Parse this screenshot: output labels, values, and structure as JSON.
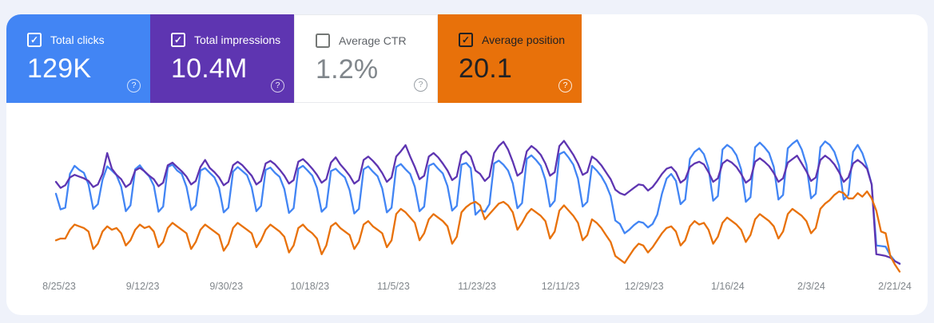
{
  "app": "Search Console Performance",
  "cards": [
    {
      "label": "Total clicks",
      "value": "129K",
      "checked": true,
      "check_glyph": "✓",
      "help_glyph": "?",
      "bg": "#4285f4",
      "text_color": "#ffffff"
    },
    {
      "label": "Total impressions",
      "value": "10.4M",
      "checked": true,
      "check_glyph": "✓",
      "help_glyph": "?",
      "bg": "#5e35b1",
      "text_color": "#ffffff"
    },
    {
      "label": "Average CTR",
      "value": "1.2%",
      "checked": false,
      "check_glyph": "",
      "help_glyph": "?",
      "bg": "#ffffff",
      "text_color": "#5f6368",
      "value_color": "#80868b"
    },
    {
      "label": "Average position",
      "value": "20.1",
      "checked": true,
      "check_glyph": "✓",
      "help_glyph": "?",
      "bg": "#e8710a",
      "text_color": "#202124"
    }
  ],
  "chart_data": {
    "type": "line",
    "grid": false,
    "legend_position": "none",
    "x_start": "8/25/23",
    "x_end": "2/22/24",
    "tick_interval_days": 18,
    "x_labels": [
      "8/25/23",
      "9/12/23",
      "9/30/23",
      "10/18/23",
      "11/5/23",
      "11/23/23",
      "12/11/23",
      "12/29/23",
      "1/16/24",
      "2/3/24",
      "2/21/24"
    ],
    "series": [
      {
        "name": "Total clicks",
        "color": "#4285f4",
        "axis_range": [
          0,
          1200
        ],
        "inverted": false,
        "unit": "clicks/day",
        "values": [
          700,
          565,
          580,
          870,
          940,
          905,
          880,
          780,
          570,
          610,
          820,
          935,
          900,
          860,
          760,
          550,
          600,
          910,
          945,
          890,
          850,
          770,
          545,
          590,
          930,
          950,
          900,
          870,
          760,
          560,
          600,
          900,
          920,
          880,
          840,
          750,
          540,
          580,
          890,
          930,
          895,
          860,
          755,
          550,
          595,
          905,
          925,
          880,
          845,
          740,
          535,
          575,
          915,
          940,
          900,
          855,
          750,
          545,
          585,
          895,
          915,
          875,
          840,
          730,
          530,
          570,
          910,
          935,
          890,
          850,
          745,
          540,
          580,
          930,
          955,
          910,
          870,
          760,
          550,
          590,
          940,
          960,
          915,
          875,
          765,
          555,
          595,
          950,
          965,
          920,
          520,
          560,
          545,
          610,
          960,
          985,
          950,
          900,
          790,
          575,
          620,
          1000,
          1030,
          990,
          940,
          820,
          590,
          640,
          1040,
          1060,
          1010,
          950,
          830,
          590,
          630,
          940,
          900,
          850,
          780,
          680,
          470,
          440,
          360,
          390,
          430,
          460,
          450,
          410,
          440,
          520,
          700,
          830,
          870,
          810,
          610,
          650,
          1000,
          1060,
          1090,
          1040,
          920,
          640,
          680,
          1080,
          1120,
          1090,
          1030,
          910,
          630,
          670,
          1100,
          1140,
          1100,
          1050,
          930,
          650,
          690,
          1090,
          1130,
          1160,
          1080,
          950,
          660,
          700,
          1100,
          1150,
          1120,
          1060,
          940,
          650,
          690,
          1060,
          1120,
          1050,
          930,
          780,
          255,
          250,
          245,
          170,
          120,
          100
        ]
      },
      {
        "name": "Total impressions",
        "color": "#5e35b1",
        "axis_range": [
          0,
          80000
        ],
        "inverted": false,
        "unit": "impressions/day",
        "values": [
          53500,
          50000,
          51500,
          56000,
          57500,
          56500,
          55500,
          54000,
          50500,
          52000,
          58000,
          70000,
          61000,
          57500,
          55000,
          50500,
          52500,
          60000,
          61500,
          59500,
          57000,
          55000,
          51000,
          53000,
          63000,
          64500,
          62000,
          59500,
          56500,
          52000,
          54000,
          62000,
          66000,
          61500,
          59000,
          56000,
          51500,
          53500,
          63000,
          65000,
          63000,
          60000,
          57000,
          52000,
          54000,
          64000,
          65500,
          63500,
          60500,
          57000,
          52500,
          54500,
          65000,
          66500,
          64000,
          61000,
          57500,
          53000,
          55000,
          64500,
          67500,
          63500,
          60500,
          57000,
          52500,
          54500,
          66000,
          68000,
          65500,
          62500,
          58500,
          53500,
          56000,
          68000,
          71000,
          74500,
          68000,
          62000,
          55000,
          57000,
          68000,
          70000,
          67500,
          64000,
          60000,
          54500,
          56500,
          69000,
          71000,
          68000,
          60000,
          58000,
          54000,
          56500,
          70000,
          74000,
          76500,
          72000,
          65000,
          57000,
          59000,
          71000,
          74000,
          72000,
          69000,
          64000,
          57000,
          59000,
          74000,
          77000,
          73000,
          69000,
          64000,
          57500,
          59000,
          68000,
          66000,
          63000,
          59000,
          55000,
          49000,
          47000,
          46000,
          48000,
          50000,
          52000,
          51500,
          48500,
          50500,
          54000,
          58000,
          61000,
          62000,
          59000,
          53000,
          55000,
          62000,
          64000,
          65000,
          63500,
          59000,
          53500,
          55500,
          64000,
          66000,
          64500,
          62000,
          58000,
          53000,
          55000,
          65000,
          67000,
          65000,
          62500,
          58500,
          53500,
          55500,
          64500,
          66500,
          68500,
          64000,
          59500,
          54000,
          56000,
          66000,
          68500,
          66500,
          63500,
          59000,
          53500,
          56000,
          64000,
          66000,
          64000,
          61000,
          52000,
          12000,
          11500,
          11000,
          10000,
          8000,
          6500
        ]
      },
      {
        "name": "Average position",
        "color": "#e8710a",
        "axis_range": [
          15,
          23
        ],
        "inverted": true,
        "unit": "position",
        "values": [
          21.0,
          20.9,
          20.9,
          20.4,
          20.1,
          20.2,
          20.3,
          20.5,
          21.5,
          21.2,
          20.5,
          20.2,
          20.4,
          20.3,
          20.6,
          21.3,
          21.0,
          20.4,
          20.1,
          20.3,
          20.2,
          20.5,
          21.4,
          21.1,
          20.3,
          20.0,
          20.2,
          20.4,
          20.6,
          21.5,
          21.1,
          20.4,
          20.1,
          20.3,
          20.5,
          20.7,
          21.6,
          21.2,
          20.3,
          20.0,
          20.2,
          20.4,
          20.6,
          21.4,
          21.0,
          20.4,
          20.1,
          20.3,
          20.5,
          20.8,
          21.7,
          21.3,
          20.3,
          20.1,
          20.4,
          20.6,
          20.9,
          21.8,
          21.3,
          20.2,
          20.0,
          20.3,
          20.5,
          20.7,
          21.5,
          21.1,
          20.1,
          19.9,
          20.2,
          20.4,
          20.6,
          21.4,
          21.0,
          19.5,
          19.2,
          19.4,
          19.7,
          20.0,
          21.0,
          20.6,
          19.8,
          19.5,
          19.7,
          19.9,
          20.2,
          21.2,
          20.8,
          19.4,
          19.1,
          18.9,
          18.8,
          19.0,
          19.8,
          19.5,
          19.2,
          18.9,
          18.8,
          19.0,
          19.4,
          20.4,
          20.0,
          19.5,
          19.2,
          19.4,
          19.6,
          19.9,
          20.9,
          20.5,
          19.3,
          19.0,
          19.3,
          19.6,
          20.0,
          21.0,
          20.7,
          19.8,
          20.0,
          20.3,
          20.7,
          21.1,
          21.9,
          22.1,
          22.3,
          21.9,
          21.5,
          21.2,
          21.3,
          21.7,
          21.4,
          21.0,
          20.6,
          20.3,
          20.2,
          20.5,
          21.3,
          21.0,
          20.2,
          19.9,
          20.1,
          20.0,
          20.4,
          21.2,
          20.8,
          20.0,
          19.7,
          19.9,
          20.1,
          20.4,
          21.1,
          20.7,
          19.8,
          19.5,
          19.7,
          19.9,
          20.2,
          20.9,
          20.5,
          19.5,
          19.2,
          19.4,
          19.6,
          19.9,
          20.6,
          20.3,
          19.2,
          18.9,
          18.7,
          18.4,
          18.2,
          18.3,
          18.6,
          18.6,
          18.3,
          18.5,
          18.2,
          18.6,
          19.3,
          20.5,
          20.6,
          21.9,
          22.4,
          22.8
        ]
      }
    ]
  }
}
